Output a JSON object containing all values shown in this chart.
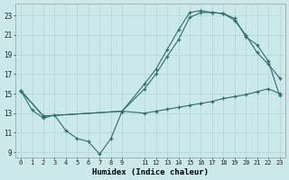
{
  "xlabel": "Humidex (Indice chaleur)",
  "bg_color": "#cce9e9",
  "grid_color": "#b3d4d4",
  "line_color": "#2d7068",
  "xlim_min": -0.5,
  "xlim_max": 23.5,
  "ylim_min": 8.5,
  "ylim_max": 24.2,
  "yticks": [
    9,
    11,
    13,
    15,
    17,
    19,
    21,
    23
  ],
  "xticks": [
    0,
    1,
    2,
    3,
    4,
    5,
    6,
    7,
    8,
    9,
    11,
    12,
    13,
    14,
    15,
    16,
    17,
    18,
    19,
    20,
    21,
    22,
    23
  ],
  "line1_x": [
    0,
    1,
    2,
    3,
    4,
    5,
    6,
    7,
    8,
    9,
    11,
    12,
    13,
    14,
    15,
    16,
    17,
    18,
    19,
    20,
    21,
    22,
    23
  ],
  "line1_y": [
    15.3,
    13.3,
    12.5,
    12.8,
    11.2,
    10.4,
    10.1,
    8.8,
    10.4,
    13.2,
    13.0,
    13.2,
    13.4,
    13.6,
    13.8,
    14.0,
    14.2,
    14.5,
    14.7,
    14.9,
    15.2,
    15.5,
    15.0
  ],
  "line2_x": [
    0,
    2,
    9,
    11,
    12,
    13,
    14,
    15,
    16,
    17,
    18,
    19,
    20,
    21,
    22,
    23
  ],
  "line2_y": [
    15.3,
    12.7,
    13.2,
    16.0,
    17.5,
    19.5,
    21.5,
    23.3,
    23.5,
    23.3,
    23.2,
    22.5,
    21.0,
    19.2,
    18.0,
    16.6
  ],
  "line3_x": [
    0,
    2,
    9,
    11,
    12,
    13,
    14,
    15,
    16,
    17,
    18,
    19,
    20,
    21,
    22,
    23
  ],
  "line3_y": [
    15.3,
    12.7,
    13.2,
    15.5,
    17.0,
    18.8,
    20.5,
    22.8,
    23.3,
    23.3,
    23.2,
    22.7,
    20.8,
    20.0,
    18.3,
    14.8
  ]
}
